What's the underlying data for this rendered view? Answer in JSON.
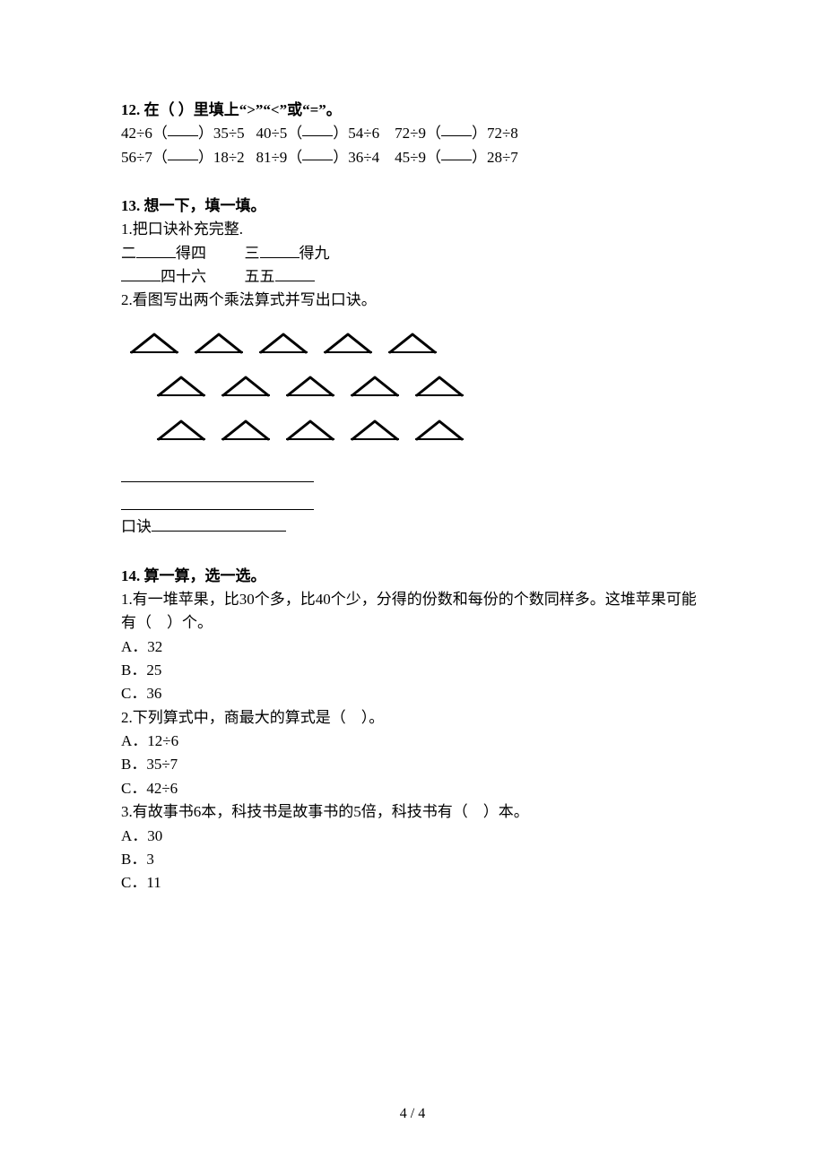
{
  "q12": {
    "title": "12. 在（ ）里填上“>”“<”或“=”。",
    "rows": [
      {
        "a": "42÷6",
        "b": "35÷5",
        "c": "40÷5",
        "d": "54÷6",
        "e": "72÷9",
        "f": "72÷8"
      },
      {
        "a": "56÷7",
        "b": "18÷2",
        "c": "81÷9",
        "d": "36÷4",
        "e": "45÷9",
        "f": "28÷7"
      }
    ]
  },
  "q13": {
    "title": "13. 想一下，填一填。",
    "p1": "1.把口诀补充完整.",
    "line1_pre": "二",
    "line1_suf": "得四",
    "line1b_pre": "三",
    "line1b_suf": "得九",
    "line2_suf": "四十六",
    "line2b_pre": "五五",
    "p2": "2.看图写出两个乘法算式并写出口诀。",
    "koujue_label": "口诀",
    "triangle_rows": [
      5,
      5,
      5
    ],
    "triangle_color": "#000000"
  },
  "q14": {
    "title": "14. 算一算，选一选。",
    "items": [
      {
        "stem": "1.有一堆苹果，比30个多，比40个少，分得的份数和每份的个数同样多。这堆苹果可能有（　）个。",
        "options": [
          "A．32",
          "B．25",
          "C．36"
        ]
      },
      {
        "stem": "2.下列算式中，商最大的算式是（　）。",
        "options": [
          "A．12÷6",
          "B．35÷7",
          "C．42÷6"
        ]
      },
      {
        "stem": "3.有故事书6本，科技书是故事书的5倍，科技书有（　）本。",
        "options": [
          "A．30",
          "B．3",
          "C．11"
        ]
      }
    ]
  },
  "footer": "4 / 4"
}
